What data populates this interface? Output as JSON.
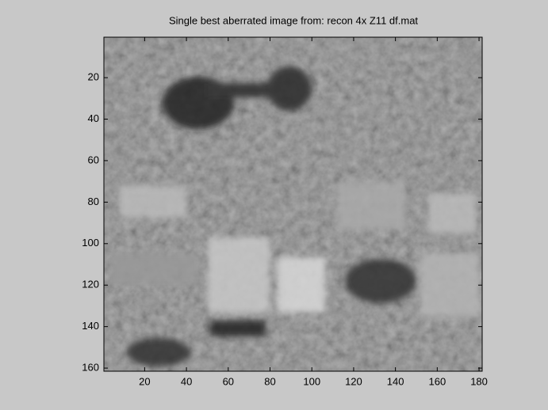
{
  "chart_data": {
    "type": "image",
    "title": "Single best aberrated image from: recon 4x Z11 df.mat",
    "xlim": [
      0.5,
      181.5
    ],
    "ylim": [
      0.5,
      161.5
    ],
    "y_reversed": true,
    "xticks": [
      20,
      40,
      60,
      80,
      100,
      120,
      140,
      160,
      180
    ],
    "yticks": [
      20,
      40,
      60,
      80,
      100,
      120,
      140,
      160
    ],
    "colormap": "gray"
  }
}
